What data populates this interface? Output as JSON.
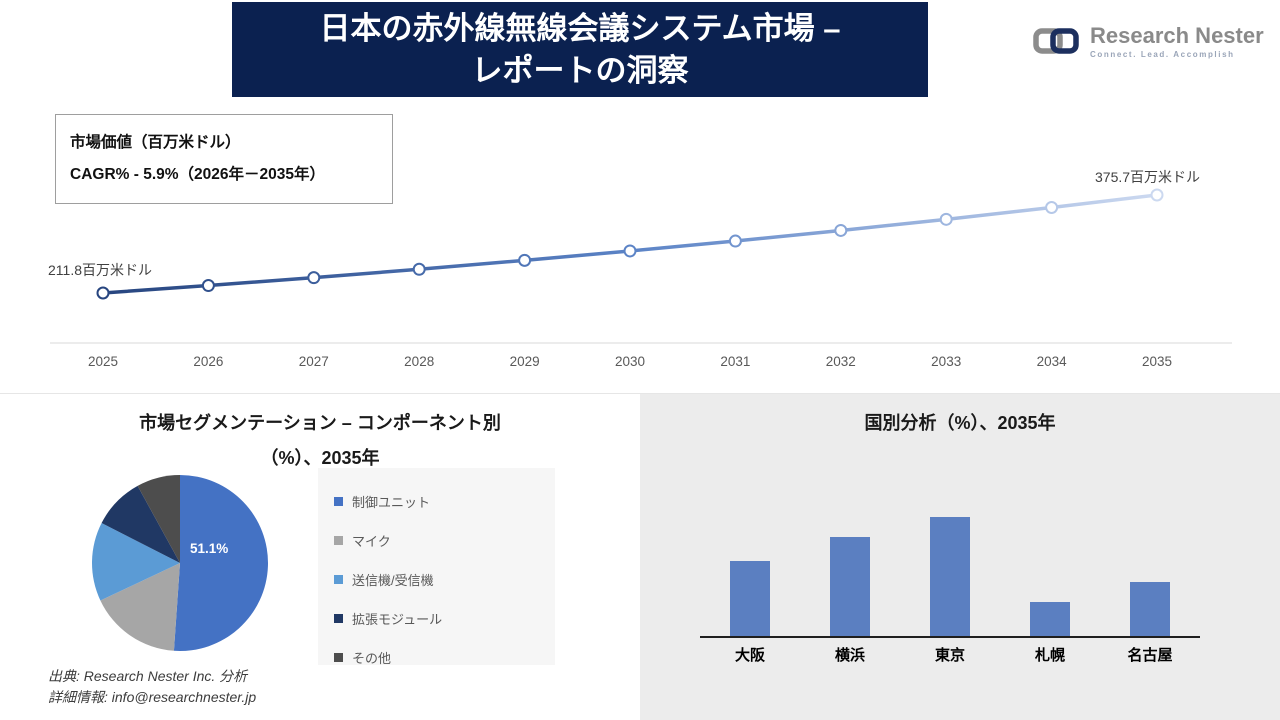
{
  "header": {
    "title_line1": "日本の赤外線無線会議システム市場 –",
    "title_line2": "レポートの洞察",
    "logo_brand": "Research Nester",
    "logo_tagline": "Connect. Lead. Accomplish"
  },
  "info_box": {
    "line1": "市場価値（百万米ドル）",
    "line2": "CAGR% - 5.9%（2026年－2035年）"
  },
  "footer": {
    "source": "出典: Research Nester Inc. 分析",
    "contact": "詳細情報: info@researchnester.jp"
  },
  "chart_data": [
    {
      "type": "line",
      "title": "",
      "xlabel": "",
      "ylabel": "市場価値（百万米ドル）",
      "x": [
        "2025",
        "2026",
        "2027",
        "2028",
        "2029",
        "2030",
        "2031",
        "2032",
        "2033",
        "2034",
        "2035"
      ],
      "values": [
        211.8,
        224.3,
        237.5,
        251.5,
        266.4,
        282.1,
        298.7,
        316.4,
        335.0,
        354.8,
        375.7
      ],
      "start_label": "211.8百万米ドル",
      "end_label": "375.7百万米ドル",
      "cagr": "5.9%",
      "line_gradient": [
        "#27457f",
        "#5b83c6",
        "#ccd9f0"
      ],
      "grid": false,
      "legend_position": "none"
    },
    {
      "type": "pie",
      "title_line1": "市場セグメンテーション – コンポーネント別",
      "title_line2": "（%）、2035年",
      "labels": [
        "制御ユニット",
        "マイク",
        "送信機/受信機",
        "拡張モジュール",
        "その他"
      ],
      "values": [
        51.1,
        16.9,
        14.5,
        9.5,
        8.0
      ],
      "colors": [
        "#4472c4",
        "#a6a6a6",
        "#5b9bd5",
        "#203864",
        "#4d4d4d"
      ],
      "data_label": "51.1%",
      "legend_position": "right"
    },
    {
      "type": "bar",
      "title": "国別分析（%）、2035年",
      "xlabel": "",
      "ylabel": "",
      "categories": [
        "大阪",
        "横浜",
        "東京",
        "札幌",
        "名古屋"
      ],
      "values": [
        22,
        29,
        35,
        10,
        16
      ],
      "ylim": [
        0,
        40
      ],
      "bar_color": "#5b7fc1",
      "grid": false,
      "legend_position": "none"
    }
  ]
}
